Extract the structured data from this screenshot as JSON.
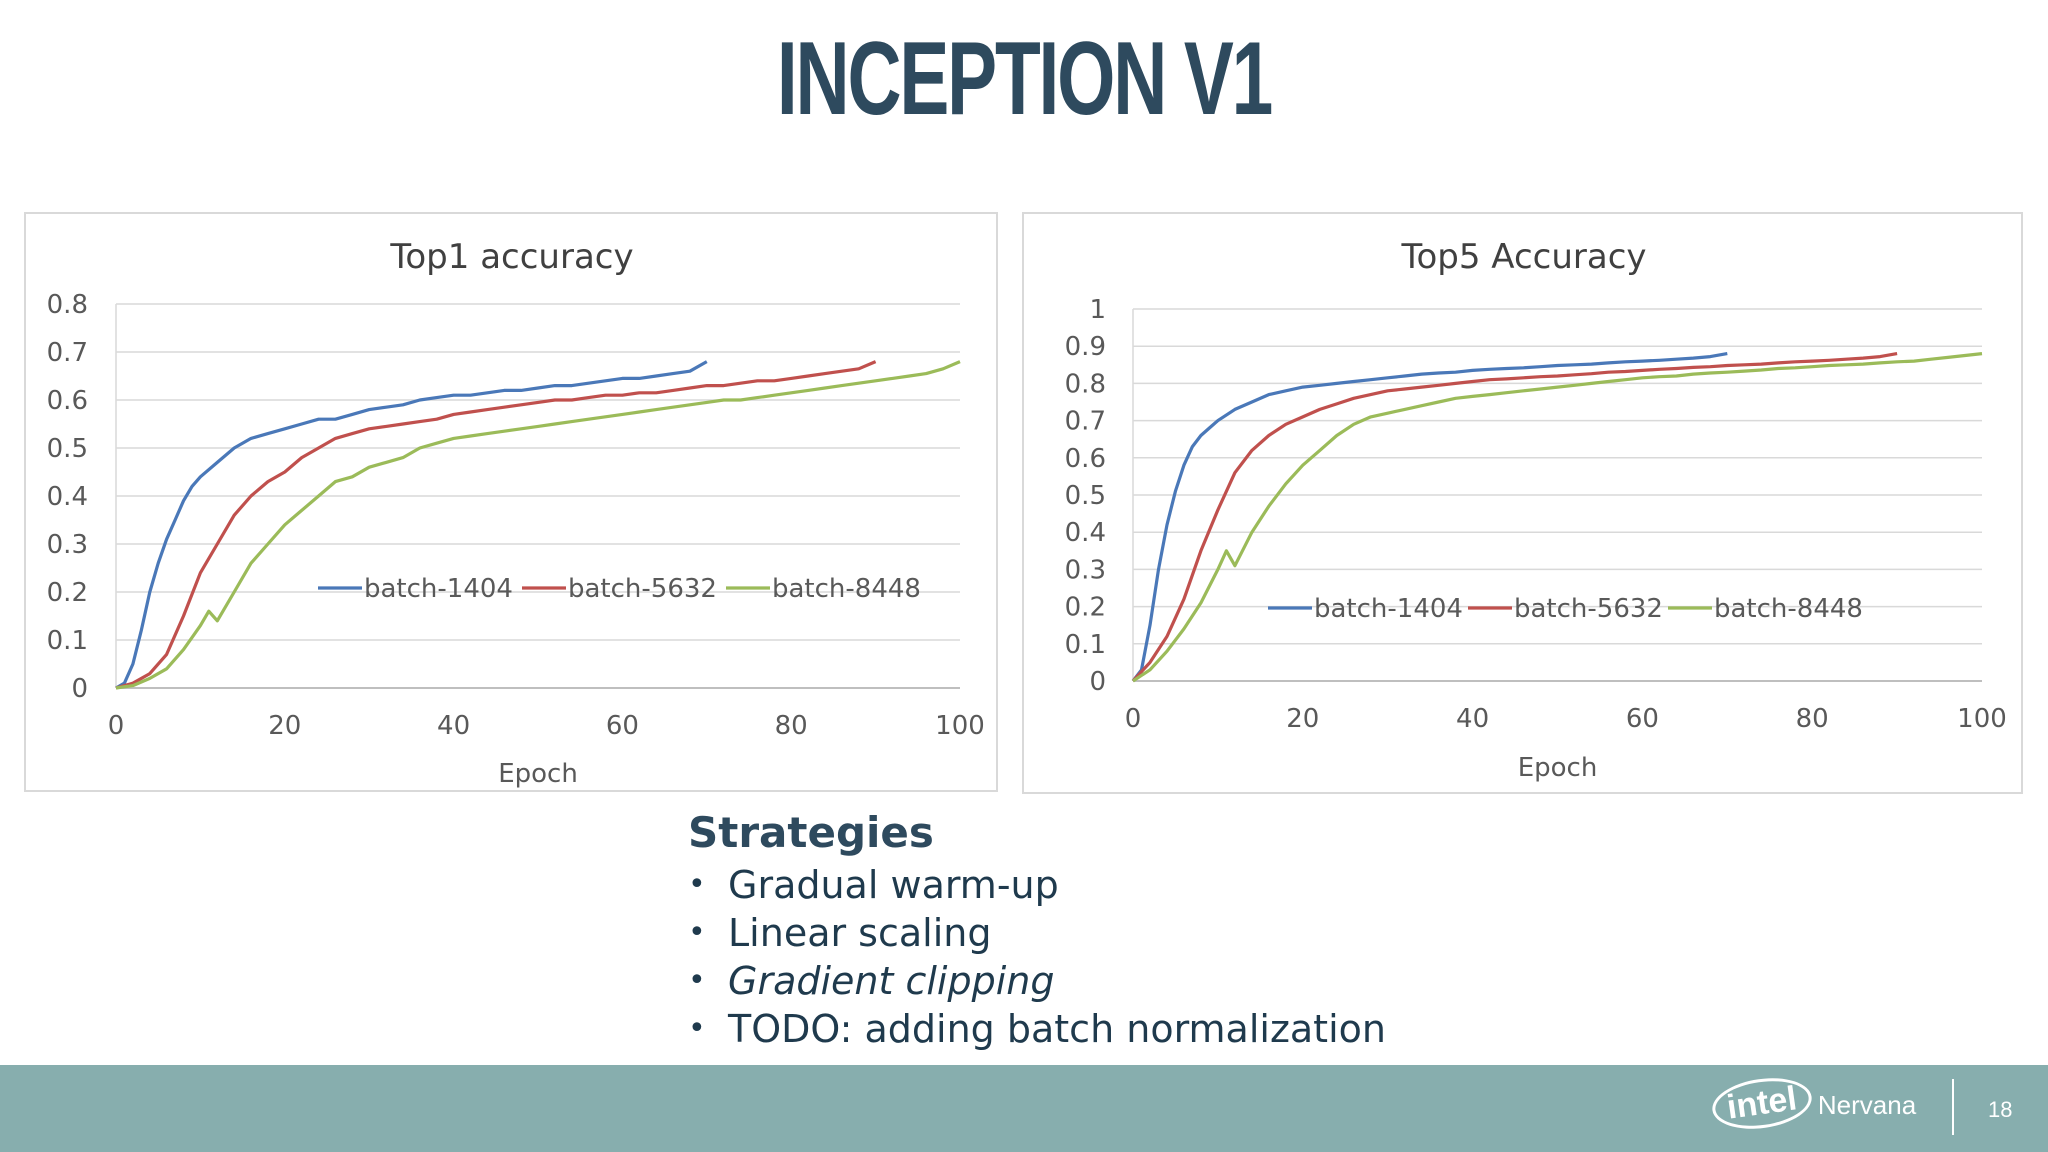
{
  "title": "INCEPTION V1",
  "chart_data": [
    {
      "type": "line",
      "title": "Top1 accuracy",
      "xlabel": "Epoch",
      "ylabel": "",
      "xlim": [
        0,
        100
      ],
      "ylim": [
        0,
        0.8
      ],
      "xticks": [
        "0",
        "20",
        "40",
        "60",
        "80",
        "100"
      ],
      "yticks": [
        "0",
        "0.1",
        "0.2",
        "0.3",
        "0.4",
        "0.5",
        "0.6",
        "0.7",
        "0.8"
      ],
      "grid": true,
      "legend": "inside",
      "series": [
        {
          "name": "batch-1404",
          "color": "#4a78b8",
          "x": [
            0,
            1,
            2,
            3,
            4,
            5,
            6,
            7,
            8,
            9,
            10,
            12,
            14,
            16,
            18,
            20,
            22,
            24,
            26,
            28,
            30,
            32,
            34,
            36,
            38,
            40,
            42,
            44,
            46,
            48,
            50,
            52,
            54,
            56,
            58,
            60,
            62,
            64,
            66,
            68,
            70
          ],
          "y": [
            0,
            0.01,
            0.05,
            0.12,
            0.2,
            0.26,
            0.31,
            0.35,
            0.39,
            0.42,
            0.44,
            0.47,
            0.5,
            0.52,
            0.53,
            0.54,
            0.55,
            0.56,
            0.56,
            0.57,
            0.58,
            0.585,
            0.59,
            0.6,
            0.605,
            0.61,
            0.61,
            0.615,
            0.62,
            0.62,
            0.625,
            0.63,
            0.63,
            0.635,
            0.64,
            0.645,
            0.645,
            0.65,
            0.655,
            0.66,
            0.68
          ]
        },
        {
          "name": "batch-5632",
          "color": "#c0504d",
          "x": [
            0,
            2,
            4,
            6,
            8,
            10,
            12,
            14,
            16,
            18,
            20,
            22,
            24,
            26,
            28,
            30,
            32,
            34,
            36,
            38,
            40,
            42,
            44,
            46,
            48,
            50,
            52,
            54,
            56,
            58,
            60,
            62,
            64,
            66,
            68,
            70,
            72,
            74,
            76,
            78,
            80,
            82,
            84,
            86,
            88,
            90
          ],
          "y": [
            0,
            0.01,
            0.03,
            0.07,
            0.15,
            0.24,
            0.3,
            0.36,
            0.4,
            0.43,
            0.45,
            0.48,
            0.5,
            0.52,
            0.53,
            0.54,
            0.545,
            0.55,
            0.555,
            0.56,
            0.57,
            0.575,
            0.58,
            0.585,
            0.59,
            0.595,
            0.6,
            0.6,
            0.605,
            0.61,
            0.61,
            0.615,
            0.615,
            0.62,
            0.625,
            0.63,
            0.63,
            0.635,
            0.64,
            0.64,
            0.645,
            0.65,
            0.655,
            0.66,
            0.665,
            0.68
          ]
        },
        {
          "name": "batch-8448",
          "color": "#9bbb59",
          "x": [
            0,
            2,
            4,
            6,
            8,
            10,
            11,
            12,
            14,
            16,
            18,
            20,
            22,
            24,
            26,
            28,
            30,
            32,
            34,
            36,
            38,
            40,
            42,
            44,
            46,
            48,
            50,
            52,
            54,
            56,
            58,
            60,
            62,
            64,
            66,
            68,
            70,
            72,
            74,
            76,
            78,
            80,
            82,
            84,
            86,
            88,
            90,
            92,
            94,
            96,
            98,
            100
          ],
          "y": [
            0,
            0.005,
            0.02,
            0.04,
            0.08,
            0.13,
            0.16,
            0.14,
            0.2,
            0.26,
            0.3,
            0.34,
            0.37,
            0.4,
            0.43,
            0.44,
            0.46,
            0.47,
            0.48,
            0.5,
            0.51,
            0.52,
            0.525,
            0.53,
            0.535,
            0.54,
            0.545,
            0.55,
            0.555,
            0.56,
            0.565,
            0.57,
            0.575,
            0.58,
            0.585,
            0.59,
            0.595,
            0.6,
            0.6,
            0.605,
            0.61,
            0.615,
            0.62,
            0.625,
            0.63,
            0.635,
            0.64,
            0.645,
            0.65,
            0.655,
            0.665,
            0.68
          ]
        }
      ]
    },
    {
      "type": "line",
      "title": "Top5 Accuracy",
      "xlabel": "Epoch",
      "ylabel": "",
      "xlim": [
        0,
        100
      ],
      "ylim": [
        0,
        1
      ],
      "xticks": [
        "0",
        "20",
        "40",
        "60",
        "80",
        "100"
      ],
      "yticks": [
        "0",
        "0.1",
        "0.2",
        "0.3",
        "0.4",
        "0.5",
        "0.6",
        "0.7",
        "0.8",
        "0.9",
        "1"
      ],
      "grid": true,
      "legend": "inside",
      "series": [
        {
          "name": "batch-1404",
          "color": "#4a78b8",
          "x": [
            0,
            1,
            2,
            3,
            4,
            5,
            6,
            7,
            8,
            9,
            10,
            12,
            14,
            16,
            18,
            20,
            22,
            24,
            26,
            28,
            30,
            32,
            34,
            36,
            38,
            40,
            42,
            44,
            46,
            48,
            50,
            52,
            54,
            56,
            58,
            60,
            62,
            64,
            66,
            68,
            70
          ],
          "y": [
            0,
            0.03,
            0.15,
            0.3,
            0.42,
            0.51,
            0.58,
            0.63,
            0.66,
            0.68,
            0.7,
            0.73,
            0.75,
            0.77,
            0.78,
            0.79,
            0.795,
            0.8,
            0.805,
            0.81,
            0.815,
            0.82,
            0.825,
            0.828,
            0.83,
            0.835,
            0.838,
            0.84,
            0.842,
            0.845,
            0.848,
            0.85,
            0.852,
            0.855,
            0.858,
            0.86,
            0.862,
            0.865,
            0.868,
            0.872,
            0.88
          ]
        },
        {
          "name": "batch-5632",
          "color": "#c0504d",
          "x": [
            0,
            2,
            4,
            6,
            8,
            10,
            12,
            14,
            16,
            18,
            20,
            22,
            24,
            26,
            28,
            30,
            32,
            34,
            36,
            38,
            40,
            42,
            44,
            46,
            48,
            50,
            52,
            54,
            56,
            58,
            60,
            62,
            64,
            66,
            68,
            70,
            72,
            74,
            76,
            78,
            80,
            82,
            84,
            86,
            88,
            90
          ],
          "y": [
            0,
            0.05,
            0.12,
            0.22,
            0.35,
            0.46,
            0.56,
            0.62,
            0.66,
            0.69,
            0.71,
            0.73,
            0.745,
            0.76,
            0.77,
            0.78,
            0.785,
            0.79,
            0.795,
            0.8,
            0.805,
            0.81,
            0.812,
            0.815,
            0.818,
            0.82,
            0.823,
            0.826,
            0.83,
            0.832,
            0.835,
            0.838,
            0.84,
            0.843,
            0.845,
            0.848,
            0.85,
            0.852,
            0.855,
            0.858,
            0.86,
            0.862,
            0.865,
            0.868,
            0.872,
            0.88
          ]
        },
        {
          "name": "batch-8448",
          "color": "#9bbb59",
          "x": [
            0,
            2,
            4,
            6,
            8,
            10,
            11,
            12,
            14,
            16,
            18,
            20,
            22,
            24,
            26,
            28,
            30,
            32,
            34,
            36,
            38,
            40,
            42,
            44,
            46,
            48,
            50,
            52,
            54,
            56,
            58,
            60,
            62,
            64,
            66,
            68,
            70,
            72,
            74,
            76,
            78,
            80,
            82,
            84,
            86,
            88,
            90,
            92,
            94,
            96,
            98,
            100
          ],
          "y": [
            0,
            0.03,
            0.08,
            0.14,
            0.21,
            0.3,
            0.35,
            0.31,
            0.4,
            0.47,
            0.53,
            0.58,
            0.62,
            0.66,
            0.69,
            0.71,
            0.72,
            0.73,
            0.74,
            0.75,
            0.76,
            0.765,
            0.77,
            0.775,
            0.78,
            0.785,
            0.79,
            0.795,
            0.8,
            0.805,
            0.81,
            0.815,
            0.818,
            0.82,
            0.825,
            0.828,
            0.83,
            0.833,
            0.836,
            0.84,
            0.842,
            0.845,
            0.848,
            0.85,
            0.852,
            0.855,
            0.858,
            0.86,
            0.865,
            0.87,
            0.875,
            0.88
          ]
        }
      ]
    }
  ],
  "strategies": {
    "heading": "Strategies",
    "items": [
      "Gradual warm-up",
      "Linear scaling",
      "Gradient clipping",
      "TODO: adding batch normalization"
    ]
  },
  "footer": {
    "logo_intel": "intel",
    "logo_nervana": "Nervana",
    "page_number": "18"
  }
}
